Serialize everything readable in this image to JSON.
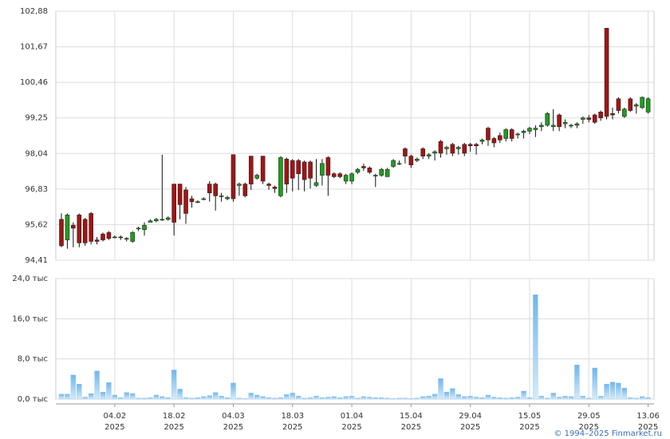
{
  "chart_data": [
    {
      "type": "candlestick",
      "open": [
        95.8,
        95.1,
        95.6,
        95.95,
        95.8,
        96.0,
        95.1,
        95.3,
        95.35,
        95.2,
        95.2,
        95.15,
        95.05,
        95.5,
        95.45,
        95.7,
        95.75,
        95.8,
        95.8,
        97.0,
        97.0,
        96.8,
        96.5,
        96.4,
        96.5,
        97.0,
        97.0,
        96.6,
        96.5,
        98.0,
        96.95,
        97.0,
        97.95,
        97.2,
        97.95,
        97.0,
        96.9,
        96.6,
        97.85,
        97.8,
        97.8,
        97.75,
        97.75,
        96.95,
        97.3,
        97.9,
        97.35,
        97.35,
        97.1,
        97.1,
        97.4,
        97.6,
        97.55,
        97.3,
        97.3,
        97.25,
        97.6,
        97.7,
        98.2,
        97.95,
        97.8,
        98.2,
        97.95,
        98.05,
        98.45,
        98.2,
        98.35,
        98.2,
        98.35,
        98.35,
        98.35,
        98.45,
        98.9,
        98.55,
        98.65,
        98.55,
        98.85,
        98.7,
        98.75,
        98.8,
        98.85,
        98.95,
        99.0,
        98.95,
        99.35,
        99.05,
        99.0,
        99.0,
        99.2,
        99.25,
        99.35,
        99.45,
        102.3,
        99.4,
        99.9,
        99.3,
        99.9,
        99.65,
        99.6,
        99.45
      ],
      "high": [
        96.0,
        96.0,
        95.7,
        96.0,
        95.85,
        96.05,
        95.2,
        95.35,
        95.4,
        95.25,
        95.25,
        95.2,
        95.4,
        95.55,
        95.7,
        95.8,
        95.85,
        98.0,
        95.9,
        97.0,
        97.0,
        96.9,
        96.6,
        96.45,
        96.55,
        97.1,
        97.05,
        96.7,
        96.6,
        98.0,
        97.05,
        97.05,
        97.95,
        97.35,
        97.95,
        97.05,
        96.95,
        97.95,
        97.9,
        97.85,
        97.85,
        97.8,
        97.8,
        97.85,
        97.85,
        97.95,
        97.4,
        97.4,
        97.35,
        97.4,
        97.55,
        97.7,
        97.6,
        97.35,
        97.55,
        97.55,
        97.85,
        97.8,
        98.25,
        98.0,
        97.9,
        98.25,
        98.05,
        98.15,
        98.5,
        98.3,
        98.4,
        98.3,
        98.4,
        98.4,
        98.4,
        98.55,
        98.95,
        98.6,
        98.75,
        98.9,
        98.9,
        98.75,
        98.85,
        98.95,
        99.0,
        99.1,
        99.45,
        99.55,
        99.4,
        99.2,
        99.05,
        99.1,
        99.3,
        99.35,
        99.4,
        99.5,
        102.3,
        99.6,
        99.95,
        99.6,
        99.95,
        99.75,
        99.98,
        99.95
      ],
      "low": [
        94.85,
        94.8,
        94.85,
        94.85,
        94.9,
        94.95,
        94.95,
        95.05,
        95.1,
        95.15,
        95.1,
        95.05,
        95.0,
        95.4,
        95.25,
        95.7,
        95.7,
        95.75,
        95.75,
        95.25,
        95.8,
        95.65,
        96.2,
        96.35,
        96.45,
        96.4,
        96.1,
        96.4,
        96.45,
        96.4,
        96.6,
        96.55,
        96.8,
        97.15,
        97.0,
        96.8,
        96.7,
        96.55,
        96.7,
        96.75,
        96.8,
        96.75,
        96.85,
        96.9,
        96.95,
        96.6,
        97.2,
        97.2,
        97.0,
        97.0,
        97.35,
        97.45,
        97.35,
        96.9,
        97.25,
        97.25,
        97.55,
        97.65,
        97.7,
        97.55,
        97.75,
        97.85,
        97.85,
        97.8,
        97.9,
        98.0,
        97.95,
        98.0,
        97.95,
        98.1,
        98.0,
        98.35,
        98.3,
        98.25,
        98.4,
        98.45,
        98.45,
        98.55,
        98.55,
        98.7,
        98.6,
        98.8,
        98.95,
        98.8,
        98.8,
        98.9,
        98.9,
        98.9,
        99.05,
        99.1,
        99.05,
        99.15,
        99.2,
        99.2,
        99.4,
        99.25,
        99.45,
        99.4,
        99.55,
        99.4
      ],
      "close": [
        94.9,
        95.95,
        95.5,
        95.0,
        95.0,
        95.05,
        95.05,
        95.1,
        95.15,
        95.2,
        95.18,
        95.15,
        95.35,
        95.5,
        95.6,
        95.75,
        95.8,
        95.8,
        95.85,
        95.7,
        96.3,
        96.0,
        96.4,
        96.4,
        96.5,
        96.7,
        96.6,
        96.6,
        96.55,
        96.5,
        97.0,
        96.6,
        97.0,
        97.3,
        97.1,
        96.95,
        96.85,
        97.9,
        97.0,
        97.2,
        97.35,
        97.15,
        97.2,
        97.05,
        97.7,
        97.3,
        97.25,
        97.25,
        97.3,
        97.35,
        97.5,
        97.55,
        97.4,
        97.3,
        97.5,
        97.5,
        97.8,
        97.7,
        97.95,
        97.65,
        97.85,
        97.95,
        98.0,
        98.1,
        98.05,
        98.25,
        98.05,
        98.25,
        98.05,
        98.3,
        98.3,
        98.5,
        98.5,
        98.4,
        98.5,
        98.85,
        98.55,
        98.7,
        98.8,
        98.9,
        98.9,
        99.0,
        99.4,
        99.0,
        98.95,
        99.1,
        99.0,
        99.05,
        99.25,
        99.2,
        99.1,
        99.25,
        99.3,
        99.35,
        99.5,
        99.55,
        99.5,
        99.7,
        99.95,
        99.9
      ],
      "up_color": "#1e9e1e",
      "down_color": "#a31414",
      "ylim": [
        94.41,
        102.88
      ],
      "yticks": [
        {
          "value": 94.41,
          "label": "94,41"
        },
        {
          "value": 95.62,
          "label": "95,62"
        },
        {
          "value": 96.83,
          "label": "96,83"
        },
        {
          "value": 98.04,
          "label": "98,04"
        },
        {
          "value": 99.25,
          "label": "99,25"
        },
        {
          "value": 100.46,
          "label": "100,46"
        },
        {
          "value": 101.67,
          "label": "101,67"
        },
        {
          "value": 102.88,
          "label": "102,88"
        }
      ],
      "grid": true
    },
    {
      "type": "bar",
      "categories": [
        null,
        null,
        null,
        null,
        null,
        null,
        null,
        null,
        null,
        "04.02",
        null,
        null,
        null,
        null,
        null,
        null,
        null,
        null,
        null,
        "18.02",
        null,
        null,
        null,
        null,
        null,
        null,
        null,
        null,
        null,
        "04.03",
        null,
        null,
        null,
        null,
        null,
        null,
        null,
        null,
        null,
        "18.03",
        null,
        null,
        null,
        null,
        null,
        null,
        null,
        null,
        null,
        "01.04",
        null,
        null,
        null,
        null,
        null,
        null,
        null,
        null,
        null,
        "15.04",
        null,
        null,
        null,
        null,
        null,
        null,
        null,
        null,
        null,
        "29.04",
        null,
        null,
        null,
        null,
        null,
        null,
        null,
        null,
        null,
        "15.05",
        null,
        null,
        null,
        null,
        null,
        null,
        null,
        null,
        null,
        "29.05",
        null,
        null,
        null,
        null,
        null,
        null,
        null,
        null,
        null,
        "13.06"
      ],
      "category_year": "2025",
      "values": [
        1.0,
        1.0,
        4.8,
        3.0,
        0.4,
        1.1,
        5.6,
        1.4,
        3.3,
        0.8,
        0.3,
        1.3,
        1.1,
        0.2,
        0.2,
        0.3,
        0.8,
        0.5,
        0.3,
        5.8,
        2.0,
        0.3,
        0.2,
        0.3,
        0.5,
        0.7,
        1.3,
        0.6,
        0.3,
        3.2,
        0.2,
        0.1,
        1.2,
        0.8,
        0.5,
        0.3,
        0.2,
        0.3,
        0.9,
        1.2,
        0.6,
        0.2,
        0.3,
        0.6,
        0.3,
        0.4,
        0.5,
        0.3,
        0.5,
        0.6,
        0.2,
        0.5,
        0.4,
        0.3,
        0.3,
        0.2,
        0.1,
        0.2,
        0.2,
        0.1,
        0.2,
        0.5,
        0.6,
        1.0,
        4.1,
        1.4,
        2.1,
        0.9,
        0.5,
        0.6,
        0.4,
        0.3,
        0.8,
        0.4,
        0.3,
        0.2,
        0.3,
        0.4,
        1.6,
        0.3,
        20.8,
        0.6,
        0.2,
        1.2,
        0.4,
        0.6,
        0.5,
        6.8,
        0.6,
        0.2,
        6.2,
        0.6,
        3.0,
        3.4,
        3.2,
        2.2,
        0.3,
        0.2,
        0.5,
        0.3
      ],
      "color": "#7fbfee",
      "ylim": [
        0,
        24
      ],
      "yticks": [
        {
          "value": 0,
          "label": "0,0 тыс"
        },
        {
          "value": 8,
          "label": "8,0 тыс"
        },
        {
          "value": 16,
          "label": "16,0 тыс"
        },
        {
          "value": 24,
          "label": "24,0 тыс"
        }
      ],
      "grid": true
    }
  ],
  "footer": "© 1994–2025 Finmarket.ru"
}
